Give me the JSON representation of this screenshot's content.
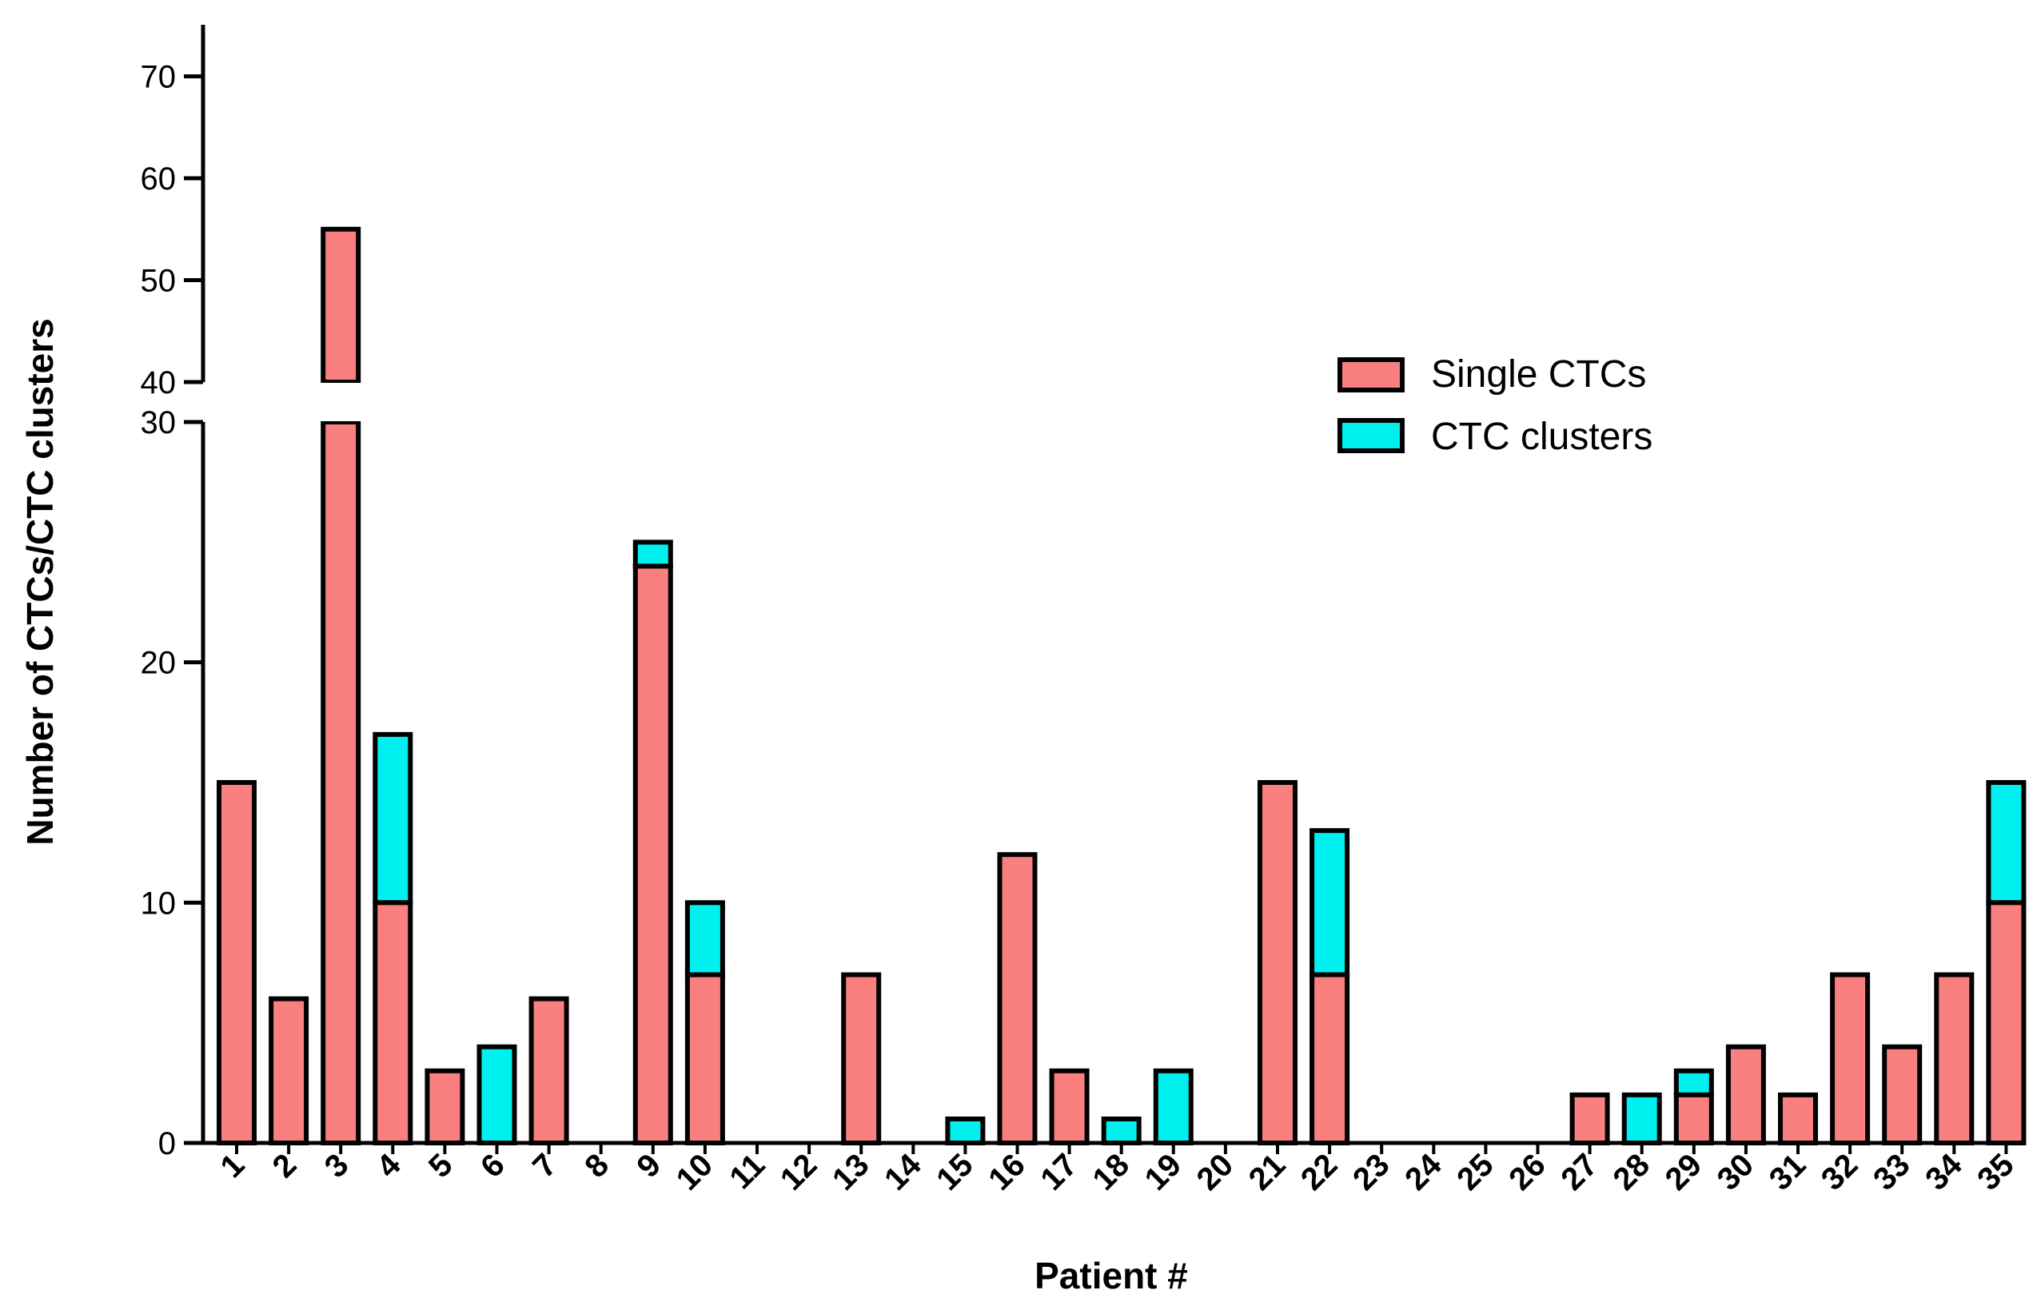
{
  "colors": {
    "single": "#fa8080",
    "clusters": "#00f0f0",
    "stroke": "#000000"
  },
  "chart_data": {
    "type": "bar",
    "stacked": true,
    "broken_y_axis": true,
    "xlabel": "Patient #",
    "ylabel": "Number of CTCs/CTC clusters",
    "categories": [
      "1",
      "2",
      "3",
      "4",
      "5",
      "6",
      "7",
      "8",
      "9",
      "10",
      "11",
      "12",
      "13",
      "14",
      "15",
      "16",
      "17",
      "18",
      "19",
      "20",
      "21",
      "22",
      "23",
      "24",
      "25",
      "26",
      "27",
      "28",
      "29",
      "30",
      "31",
      "32",
      "33",
      "34",
      "35"
    ],
    "series": [
      {
        "name": "Single CTCs",
        "color_key": "single",
        "values": [
          15,
          6,
          55,
          10,
          3,
          0,
          6,
          0,
          24,
          7,
          0,
          0,
          7,
          0,
          0,
          12,
          3,
          0,
          0,
          0,
          15,
          7,
          0,
          0,
          0,
          0,
          2,
          0,
          2,
          4,
          2,
          7,
          4,
          7,
          10
        ]
      },
      {
        "name": "CTC clusters",
        "color_key": "clusters",
        "values": [
          0,
          0,
          0,
          7,
          0,
          4,
          0,
          0,
          1,
          3,
          0,
          0,
          0,
          0,
          1,
          0,
          0,
          1,
          3,
          0,
          0,
          6,
          0,
          0,
          0,
          0,
          0,
          2,
          1,
          0,
          0,
          0,
          0,
          0,
          5
        ]
      }
    ],
    "y_lower_segment": {
      "range": [
        0,
        30
      ],
      "ticks": [
        0,
        10,
        20,
        30
      ]
    },
    "y_upper_segment": {
      "range": [
        40,
        75
      ],
      "ticks": [
        40,
        50,
        60,
        70
      ]
    },
    "legend": {
      "position": "upper-right",
      "entries": [
        "Single CTCs",
        "CTC clusters"
      ]
    },
    "grid": false
  }
}
